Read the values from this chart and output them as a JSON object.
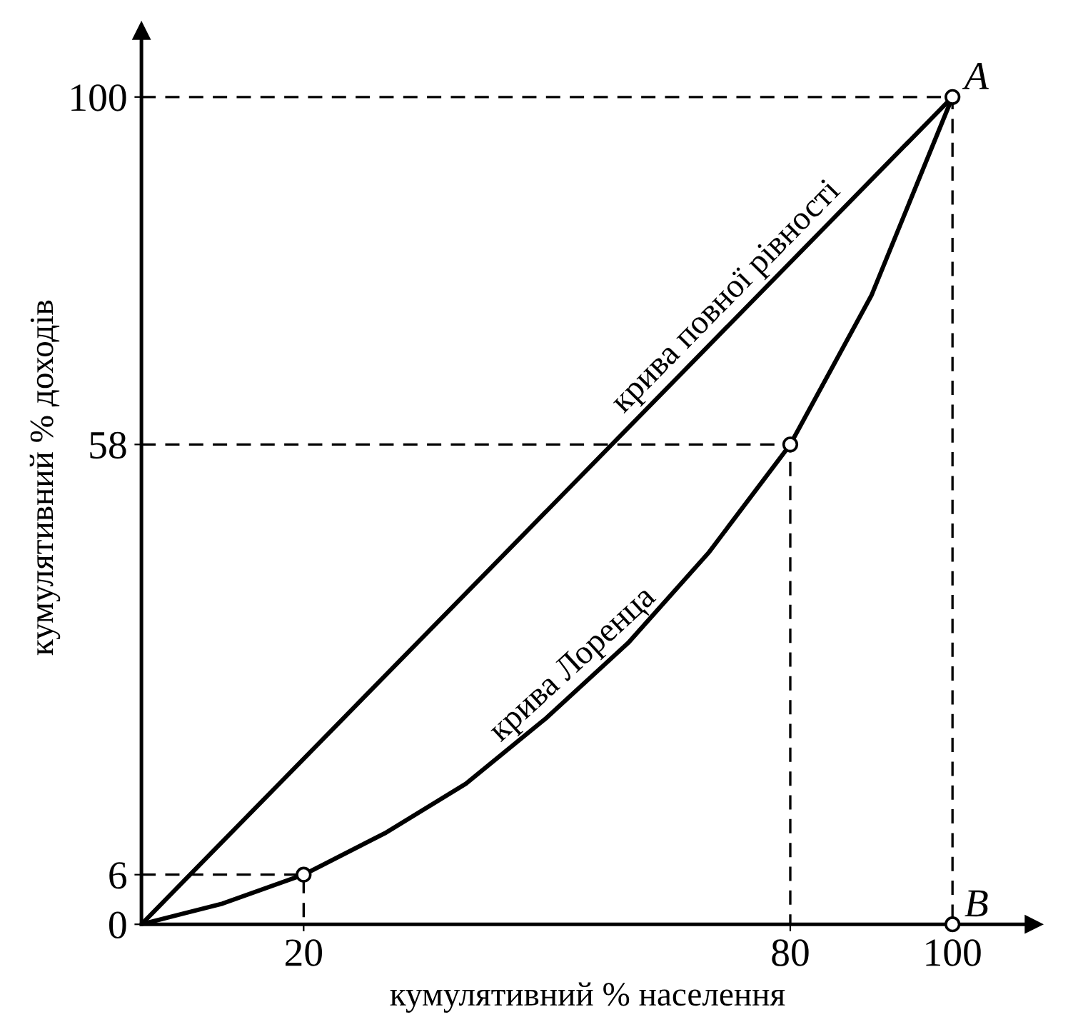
{
  "chart_data": {
    "type": "line",
    "xlabel": "кумулятивний % населення",
    "ylabel": "кумулятивний % доходів",
    "xlim": [
      0,
      110
    ],
    "ylim": [
      0,
      108
    ],
    "xticks": [
      20,
      80,
      100
    ],
    "yticks": [
      0,
      6,
      58,
      100
    ],
    "grid": false,
    "series": [
      {
        "name": "крива повної рівності",
        "color": "#000000",
        "line_style": "solid",
        "x": [
          0,
          100
        ],
        "values": [
          0,
          100
        ]
      },
      {
        "name": "крива Лоренца",
        "color": "#000000",
        "line_style": "solid",
        "x": [
          0,
          10,
          20,
          30,
          40,
          50,
          60,
          70,
          80,
          90,
          100
        ],
        "values": [
          0,
          2.5,
          6,
          11,
          17,
          25,
          34,
          45,
          58,
          76,
          100
        ]
      },
      {
        "color": "#000000",
        "line_style": "dashed",
        "x": [
          0,
          100,
          100
        ],
        "values": [
          100,
          100,
          0
        ]
      },
      {
        "color": "#000000",
        "line_style": "dashed",
        "x": [
          0,
          80,
          80
        ],
        "values": [
          58,
          58,
          0
        ]
      },
      {
        "color": "#000000",
        "line_style": "dashed",
        "x": [
          0,
          20,
          20
        ],
        "values": [
          6,
          6,
          0
        ]
      },
      {
        "type": "scatter",
        "marker": "circle",
        "color": "#000000",
        "x": [
          20,
          80,
          100,
          100
        ],
        "values": [
          6,
          58,
          100,
          0
        ]
      }
    ],
    "annotations": [
      {
        "text": "A",
        "x": 100,
        "y": 100
      },
      {
        "text": "B",
        "x": 100,
        "y": 0
      }
    ]
  }
}
